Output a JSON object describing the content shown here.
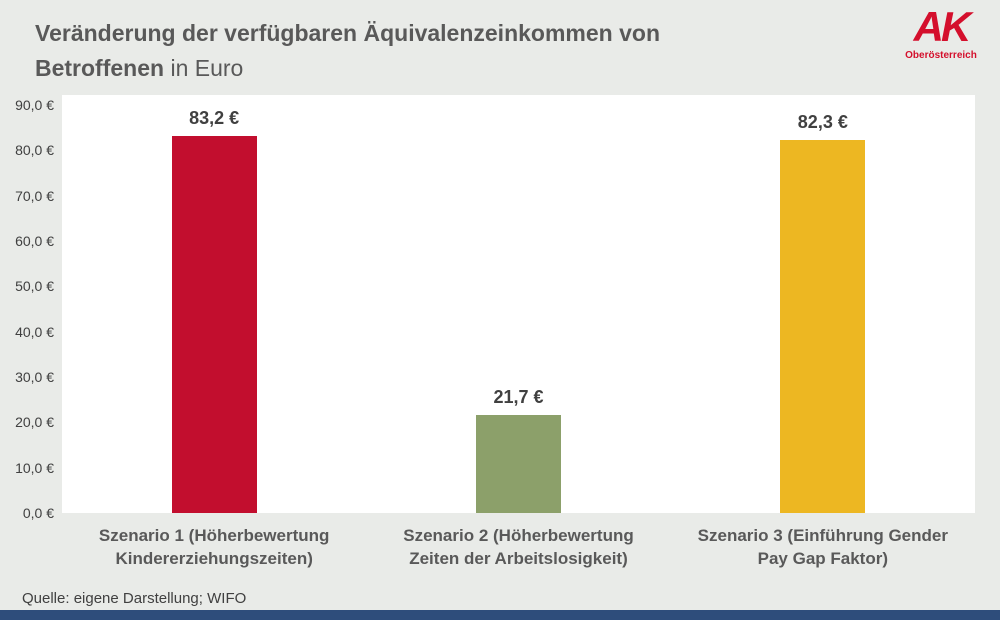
{
  "title": {
    "bold": "Veränderung der verfügbaren Äquivalenzeinkommen von Betroffenen",
    "regular": " in Euro"
  },
  "logo": {
    "main": "AK",
    "sub": "Oberösterreich"
  },
  "source": "Quelle: eigene Darstellung; WIFO",
  "colors": {
    "background": "#e9ebe8",
    "plot_background": "#ffffff",
    "title_text": "#595959",
    "axis_text": "#404040",
    "logo_red": "#d40f2c",
    "footer_strip": "#2e4d7b"
  },
  "chart_data": {
    "type": "bar",
    "title": "Veränderung der verfügbaren Äquivalenzeinkommen von Betroffenen in Euro",
    "categories": [
      "Szenario 1 (Höherbewertung Kindererziehungszeiten)",
      "Szenario 2 (Höherbewertung Zeiten der Arbeitslosigkeit)",
      "Szenario 3 (Einführung Gender Pay Gap Faktor)"
    ],
    "values": [
      83.2,
      21.7,
      82.3
    ],
    "value_labels": [
      "83,2 €",
      "21,7 €",
      "82,3 €"
    ],
    "bar_colors": [
      "#c20e2e",
      "#8ca06a",
      "#edb722"
    ],
    "xlabel": "",
    "ylabel": "",
    "ylim": [
      0,
      90
    ],
    "yticks": [
      0,
      10,
      20,
      30,
      40,
      50,
      60,
      70,
      80,
      90
    ],
    "ytick_labels": [
      "0,0 €",
      "10,0 €",
      "20,0 €",
      "30,0 €",
      "40,0 €",
      "50,0 €",
      "60,0 €",
      "70,0 €",
      "80,0 €",
      "90,0 €"
    ],
    "grid": false,
    "legend": false,
    "unit": "€"
  }
}
